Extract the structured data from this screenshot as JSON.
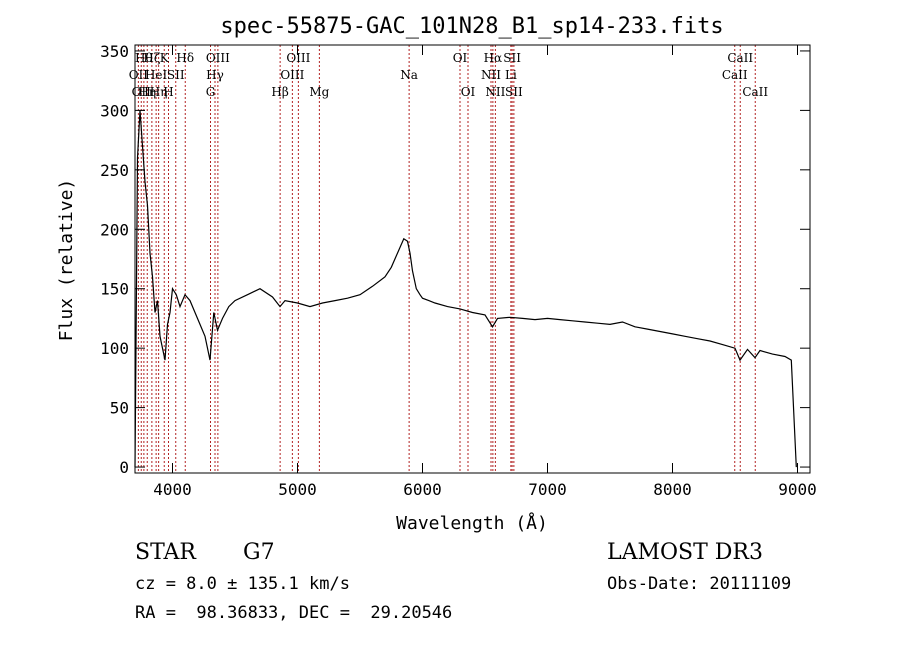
{
  "chart_data": {
    "type": "line",
    "title": "spec-55875-GAC_101N28_B1_sp14-233.fits",
    "xlabel": "Wavelength (Å)",
    "ylabel": "Flux (relative)",
    "xlim": [
      3700,
      9100
    ],
    "ylim": [
      -5,
      355
    ],
    "xticks": [
      4000,
      5000,
      6000,
      7000,
      8000,
      9000
    ],
    "yticks": [
      0,
      50,
      100,
      150,
      200,
      250,
      300,
      350
    ],
    "line_color": "#000000",
    "marker_color": "#b22222",
    "series": [
      {
        "x": [
          3700,
          3720,
          3740,
          3760,
          3780,
          3800,
          3820,
          3840,
          3860,
          3880,
          3900,
          3920,
          3940,
          3960,
          3980,
          4000,
          4030,
          4060,
          4100,
          4140,
          4180,
          4220,
          4260,
          4300,
          4330,
          4360,
          4400,
          4450,
          4500,
          4600,
          4700,
          4800,
          4860,
          4900,
          5000,
          5100,
          5200,
          5300,
          5400,
          5500,
          5600,
          5700,
          5750,
          5800,
          5850,
          5880,
          5900,
          5920,
          5950,
          5980,
          6000,
          6050,
          6100,
          6200,
          6300,
          6400,
          6500,
          6560,
          6600,
          6700,
          6800,
          6900,
          7000,
          7100,
          7200,
          7300,
          7400,
          7500,
          7600,
          7700,
          7800,
          7900,
          8000,
          8100,
          8200,
          8300,
          8400,
          8500,
          8540,
          8600,
          8660,
          8700,
          8800,
          8900,
          8950,
          8990
        ],
        "y": [
          0,
          260,
          300,
          270,
          240,
          220,
          180,
          160,
          130,
          140,
          110,
          100,
          90,
          120,
          130,
          150,
          145,
          135,
          145,
          140,
          130,
          120,
          110,
          90,
          130,
          115,
          125,
          135,
          140,
          145,
          150,
          143,
          135,
          140,
          138,
          135,
          138,
          140,
          142,
          145,
          152,
          160,
          168,
          180,
          192,
          190,
          180,
          165,
          150,
          145,
          142,
          140,
          138,
          135,
          133,
          130,
          128,
          118,
          125,
          126,
          125,
          124,
          125,
          124,
          123,
          122,
          121,
          120,
          122,
          118,
          116,
          114,
          112,
          110,
          108,
          106,
          103,
          100,
          90,
          99,
          92,
          98,
          95,
          93,
          90,
          0
        ]
      }
    ],
    "lines": [
      {
        "x": 3727,
        "label": "OII",
        "row": 2
      },
      {
        "x": 3750,
        "label": "OII",
        "row": 3
      },
      {
        "x": 3771,
        "label": "Hθ",
        "row": 1
      },
      {
        "x": 3798,
        "label": "Hη",
        "row": 3
      },
      {
        "x": 3835,
        "label": "Hζ",
        "row": 1
      },
      {
        "x": 3869,
        "label": "HeI",
        "row": 2
      },
      {
        "x": 3889,
        "label": "Hη",
        "row": 3
      },
      {
        "x": 3934,
        "label": "K",
        "row": 1
      },
      {
        "x": 3968,
        "label": "H",
        "row": 3
      },
      {
        "x": 4026,
        "label": "SII",
        "row": 2
      },
      {
        "x": 4102,
        "label": "Hδ",
        "row": 1
      },
      {
        "x": 4304,
        "label": "G",
        "row": 3
      },
      {
        "x": 4340,
        "label": "Hγ",
        "row": 2
      },
      {
        "x": 4363,
        "label": "OIII",
        "row": 1
      },
      {
        "x": 4861,
        "label": "Hβ",
        "row": 3
      },
      {
        "x": 4959,
        "label": "OIII",
        "row": 2
      },
      {
        "x": 5007,
        "label": "OIII",
        "row": 1
      },
      {
        "x": 5175,
        "label": "Mg",
        "row": 3
      },
      {
        "x": 5893,
        "label": "Na",
        "row": 2
      },
      {
        "x": 6300,
        "label": "OI",
        "row": 1
      },
      {
        "x": 6364,
        "label": "OI",
        "row": 3
      },
      {
        "x": 6548,
        "label": "NII",
        "row": 2
      },
      {
        "x": 6563,
        "label": "Hα",
        "row": 1
      },
      {
        "x": 6583,
        "label": "NII",
        "row": 3
      },
      {
        "x": 6707,
        "label": "Li",
        "row": 2
      },
      {
        "x": 6717,
        "label": "SII",
        "row": 1
      },
      {
        "x": 6731,
        "label": "SII",
        "row": 3
      },
      {
        "x": 8498,
        "label": "CaII",
        "row": 2
      },
      {
        "x": 8542,
        "label": "CaII",
        "row": 1
      },
      {
        "x": 8662,
        "label": "CaII",
        "row": 3
      }
    ]
  },
  "info": {
    "object_class": "STAR",
    "subclass": "G7",
    "survey": "LAMOST DR3",
    "cz": "cz = 8.0 ± 135.1 km/s",
    "obs_date": "Obs-Date: 20111109",
    "coords": "RA =  98.36833, DEC =  29.20546"
  }
}
